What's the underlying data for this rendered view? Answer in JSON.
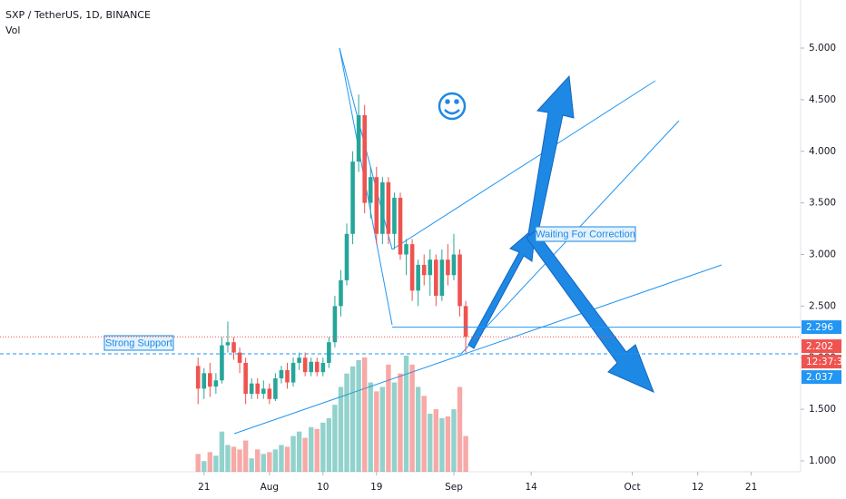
{
  "chart_data": {
    "type": "candlestick",
    "title": "SXP / TetherUS, 1D, BINANCE",
    "volume_label": "Vol",
    "x": [
      20,
      21,
      22,
      23,
      24,
      25,
      26,
      27,
      28,
      29,
      30,
      31,
      32,
      33,
      34,
      35,
      36,
      37,
      38,
      39,
      40,
      41,
      42,
      43,
      44,
      45,
      46,
      47,
      48,
      49,
      50,
      51,
      52,
      53,
      54,
      55,
      56,
      57,
      58,
      59,
      60,
      61,
      62,
      63,
      64,
      65
    ],
    "open": [
      1.92,
      1.7,
      1.85,
      1.72,
      1.78,
      2.12,
      2.15,
      2.05,
      1.95,
      1.65,
      1.75,
      1.65,
      1.7,
      1.6,
      1.8,
      1.88,
      1.76,
      1.95,
      2.0,
      1.86,
      1.96,
      1.86,
      1.95,
      2.15,
      2.5,
      2.75,
      3.2,
      3.9,
      4.35,
      3.5,
      3.75,
      3.2,
      3.7,
      3.2,
      3.55,
      3.0,
      3.1,
      2.65,
      2.9,
      2.8,
      2.95,
      2.6,
      2.95,
      2.8,
      3.0,
      2.5
    ],
    "high": [
      2.0,
      1.9,
      1.95,
      1.85,
      2.2,
      2.35,
      2.2,
      2.1,
      2.0,
      1.8,
      1.8,
      1.78,
      1.75,
      1.85,
      1.92,
      1.95,
      2.0,
      2.05,
      2.05,
      2.0,
      2.0,
      2.0,
      2.2,
      2.6,
      2.85,
      3.3,
      4.0,
      4.55,
      4.45,
      3.85,
      3.85,
      3.75,
      3.75,
      3.6,
      3.6,
      3.15,
      3.15,
      2.95,
      3.0,
      3.05,
      3.0,
      3.05,
      3.1,
      3.2,
      3.05,
      2.55
    ],
    "low": [
      1.55,
      1.6,
      1.62,
      1.65,
      1.75,
      2.05,
      1.98,
      1.85,
      1.55,
      1.6,
      1.6,
      1.6,
      1.55,
      1.58,
      1.75,
      1.7,
      1.72,
      1.88,
      1.82,
      1.82,
      1.82,
      1.82,
      1.9,
      2.1,
      2.4,
      2.7,
      3.1,
      3.8,
      3.4,
      3.35,
      3.1,
      3.1,
      3.1,
      3.05,
      2.95,
      2.8,
      2.55,
      2.5,
      2.7,
      2.6,
      2.5,
      2.55,
      2.7,
      2.75,
      2.4,
      2.05
    ],
    "close": [
      1.7,
      1.85,
      1.72,
      1.78,
      2.12,
      2.15,
      2.05,
      1.95,
      1.65,
      1.75,
      1.65,
      1.7,
      1.6,
      1.8,
      1.88,
      1.76,
      1.95,
      2.0,
      1.86,
      1.96,
      1.86,
      1.95,
      2.15,
      2.5,
      2.75,
      3.2,
      3.9,
      4.35,
      3.5,
      3.75,
      3.2,
      3.7,
      3.2,
      3.55,
      3.0,
      3.1,
      2.65,
      2.9,
      2.8,
      2.95,
      2.6,
      2.95,
      2.8,
      3.0,
      2.5,
      2.202
    ],
    "volume": [
      20,
      12,
      22,
      18,
      45,
      30,
      28,
      25,
      35,
      15,
      25,
      20,
      22,
      25,
      30,
      28,
      40,
      45,
      38,
      50,
      48,
      55,
      60,
      75,
      95,
      110,
      118,
      125,
      128,
      100,
      90,
      95,
      120,
      100,
      110,
      130,
      120,
      95,
      85,
      65,
      70,
      60,
      62,
      70,
      95,
      40
    ],
    "up_color": "#26a69a",
    "down_color": "#ef5350",
    "xlim": [
      -13.3,
      121.3
    ],
    "xticks": [
      21,
      {
        "value": 32,
        "label": "Aug"
      },
      {
        "value": 41,
        "label": "10"
      },
      {
        "value": 50,
        "label": "19"
      },
      {
        "value": 63,
        "label": "Sep"
      },
      {
        "value": 76,
        "label": "14"
      },
      {
        "value": 93,
        "label": "Oct"
      },
      {
        "value": 104,
        "label": "12"
      },
      {
        "value": 113,
        "label": "21"
      }
    ],
    "ylim": [
      0.8945,
      5.466
    ],
    "yticks": [
      {
        "value": 1,
        "label": "1.000"
      },
      {
        "value": 1.5,
        "label": "1.500"
      },
      {
        "value": 2,
        "label": "2.000"
      },
      {
        "value": 2.5,
        "label": "2.500"
      },
      {
        "value": 3,
        "label": "3.000"
      },
      {
        "value": 3.5,
        "label": "3.500"
      },
      {
        "value": 4,
        "label": "4.000"
      },
      {
        "value": 4.5,
        "label": "4.500"
      },
      {
        "value": 5,
        "label": "5.000"
      }
    ],
    "price_lines": [
      2.296,
      2.037
    ],
    "countdown": "12:37:37",
    "annotations": [
      "Strong Support",
      "Waiting For Correction"
    ]
  }
}
